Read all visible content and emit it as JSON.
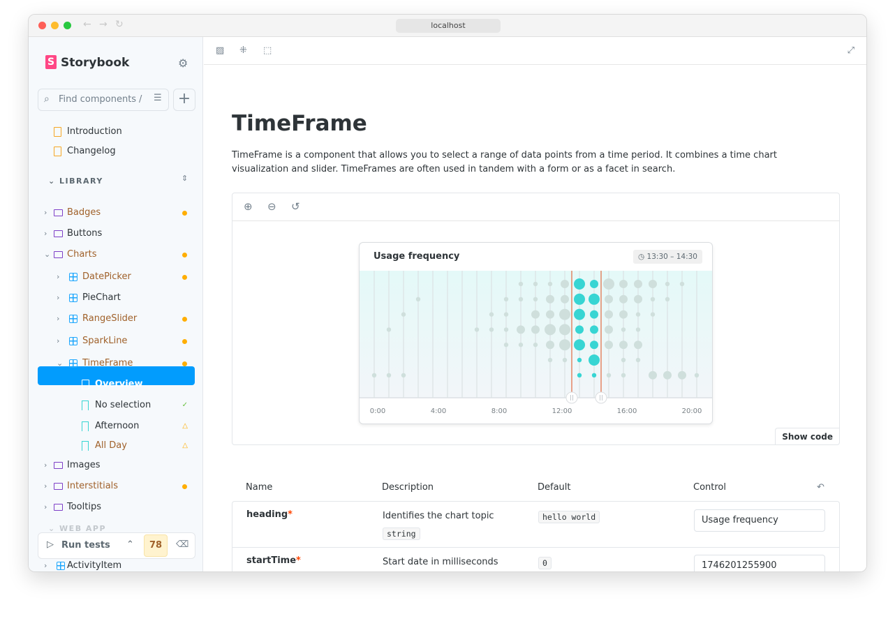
{
  "browser": {
    "url": "localhost"
  },
  "sidebar": {
    "brand": "Storybook",
    "search_placeholder": "Find components",
    "search_shortcut": "/",
    "items": [
      {
        "label": "Introduction"
      },
      {
        "label": "Changelog"
      }
    ],
    "section_library": "LIBRARY",
    "tree": [
      {
        "label": "Badges",
        "status": "changed"
      },
      {
        "label": "Buttons"
      },
      {
        "label": "Charts",
        "status": "changed"
      },
      {
        "label": "DatePicker",
        "status": "changed"
      },
      {
        "label": "PieChart"
      },
      {
        "label": "RangeSlider",
        "status": "changed"
      },
      {
        "label": "SparkLine",
        "status": "changed"
      },
      {
        "label": "TimeFrame",
        "status": "changed"
      },
      {
        "label": "Overview"
      },
      {
        "label": "No selection",
        "status": "pass"
      },
      {
        "label": "Afternoon",
        "status": "warning"
      },
      {
        "label": "All Day",
        "status": "warning"
      },
      {
        "label": "Images"
      },
      {
        "label": "Interstitials",
        "status": "changed"
      },
      {
        "label": "Tooltips"
      }
    ],
    "section_webapp": "WEB APP",
    "run_tests": "Run tests",
    "test_count": "78",
    "next_item": "ActivityItem"
  },
  "page": {
    "title": "TimeFrame",
    "description": "TimeFrame is a component that allows you to select a range of data points from a time period. It combines a time chart visualization and slider. TimeFrames are often used in tandem with a form or as a facet in search.",
    "show_code": "Show code"
  },
  "chart_data": {
    "type": "scatter",
    "title": "Usage frequency",
    "range_badge": "13:30 – 14:30",
    "x_ticks": [
      "0:00",
      "4:00",
      "8:00",
      "12:00",
      "16:00",
      "20:00"
    ],
    "selected_columns": [
      14,
      15
    ],
    "columns": [
      [
        0,
        0,
        0,
        0,
        0,
        0,
        1
      ],
      [
        0,
        0,
        0,
        1,
        0,
        0,
        1
      ],
      [
        0,
        0,
        1,
        0,
        0,
        0,
        1
      ],
      [
        0,
        1,
        0,
        0,
        0,
        0,
        0
      ],
      [
        0,
        0,
        0,
        0,
        0,
        0,
        0
      ],
      [
        0,
        0,
        0,
        0,
        0,
        0,
        0
      ],
      [
        0,
        0,
        0,
        0,
        0,
        0,
        0
      ],
      [
        0,
        0,
        0,
        1,
        0,
        0,
        0
      ],
      [
        0,
        0,
        1,
        1,
        0,
        0,
        0
      ],
      [
        0,
        1,
        1,
        1,
        1,
        0,
        0
      ],
      [
        1,
        1,
        0,
        2,
        1,
        0,
        0
      ],
      [
        1,
        1,
        2,
        2,
        1,
        0,
        0
      ],
      [
        1,
        2,
        2,
        3,
        2,
        1,
        0
      ],
      [
        2,
        2,
        3,
        3,
        3,
        1,
        0
      ],
      [
        3,
        3,
        3,
        2,
        3,
        1,
        1
      ],
      [
        2,
        3,
        2,
        2,
        2,
        3,
        1
      ],
      [
        3,
        2,
        2,
        2,
        2,
        0,
        1
      ],
      [
        2,
        2,
        2,
        1,
        2,
        1,
        1
      ],
      [
        2,
        2,
        1,
        1,
        2,
        1,
        0
      ],
      [
        2,
        1,
        1,
        0,
        0,
        0,
        2
      ],
      [
        1,
        1,
        0,
        0,
        0,
        0,
        2
      ],
      [
        1,
        0,
        0,
        0,
        0,
        0,
        2
      ],
      [
        0,
        0,
        0,
        0,
        0,
        0,
        1
      ]
    ],
    "colors": {
      "selected": "#37d5d3",
      "unselected": "#cfdfdc",
      "range_line": "#e2693f"
    }
  },
  "args_table": {
    "headers": [
      "Name",
      "Description",
      "Default",
      "Control"
    ],
    "rows": [
      {
        "name": "heading",
        "description": "Identifies the chart topic",
        "type": "string",
        "default": "hello world",
        "control": "Usage frequency"
      },
      {
        "name": "startTime",
        "description": "Start date in milliseconds",
        "default": "0",
        "control": "1746201255900"
      }
    ]
  }
}
